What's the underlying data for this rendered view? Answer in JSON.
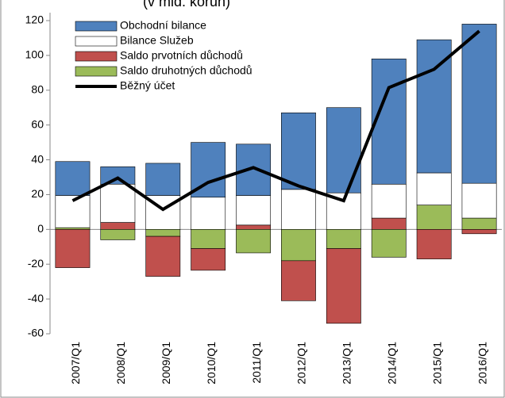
{
  "chart_data": {
    "type": "stacked-bar-line",
    "title": "(v mld. korun)",
    "categories": [
      "2007/Q1",
      "2008/Q1",
      "2009/Q1",
      "2010/Q1",
      "2011/Q1",
      "2012/Q1",
      "2013/Q1",
      "2014/Q1",
      "2015/Q1",
      "2016/Q1"
    ],
    "series": [
      {
        "name": "Obchodní bilance",
        "type": "bar",
        "color": "#4f81bd",
        "values": [
          19.5,
          10,
          18.5,
          31.5,
          29.5,
          44,
          49,
          72,
          76.5,
          91.5
        ]
      },
      {
        "name": "Bilance Služeb",
        "type": "bar",
        "color": "#ffffff",
        "values": [
          18.5,
          22,
          19.5,
          18.5,
          17,
          23,
          21,
          19.5,
          18.5,
          20
        ]
      },
      {
        "name": "Saldo prvotních důchodů",
        "type": "bar",
        "color": "#c0504d",
        "values": [
          -22,
          4,
          -23,
          -12.5,
          2.5,
          -23,
          -43,
          6.5,
          -17,
          -2.5
        ]
      },
      {
        "name": "Saldo druhotných důchodů",
        "type": "bar",
        "color": "#9bbb59",
        "values": [
          1,
          -6,
          -4,
          -11,
          -13.5,
          -18,
          -11,
          -16,
          14,
          6.5
        ]
      },
      {
        "name": "Běžný účet",
        "type": "line",
        "color": "#000000",
        "values": [
          16.5,
          29.5,
          11.5,
          27,
          35.5,
          25,
          16.5,
          81.5,
          92,
          114
        ]
      }
    ],
    "ylim": [
      -60,
      120
    ],
    "yticks": [
      -60,
      -40,
      -20,
      0,
      20,
      40,
      60,
      80,
      100,
      120
    ],
    "legend": "top-left"
  }
}
